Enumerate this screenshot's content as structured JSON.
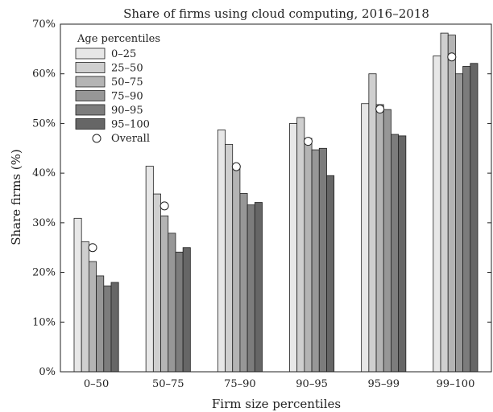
{
  "colors": {
    "age_0_25": "#e7e7e7",
    "age_25_50": "#cfcfcf",
    "age_50_75": "#b4b4b4",
    "age_75_90": "#979797",
    "age_90_95": "#7c7c7c",
    "age_95_100": "#666666",
    "overall_marker": "#ffffff",
    "axis": "#222222"
  },
  "chart_data": {
    "type": "bar",
    "title": "Share of firms using cloud computing, 2016–2018",
    "xlabel": "Firm size percentiles",
    "ylabel": "Share firms (%)",
    "ylim": [
      0,
      70
    ],
    "yticks": [
      0,
      10,
      20,
      30,
      40,
      50,
      60,
      70
    ],
    "ytick_labels": [
      "0%",
      "10%",
      "20%",
      "30%",
      "40%",
      "50%",
      "60%",
      "70%"
    ],
    "categories": [
      "0–50",
      "50–75",
      "75–90",
      "90–95",
      "95–99",
      "99–100"
    ],
    "legend_title": "Age percentiles",
    "legend_position": "top-left",
    "grid": false,
    "series": [
      {
        "name": "0–25",
        "color_key": "age_0_25",
        "values": [
          30.9,
          41.4,
          48.7,
          50.0,
          54.0,
          63.6
        ]
      },
      {
        "name": "25–50",
        "color_key": "age_25_50",
        "values": [
          26.2,
          35.8,
          45.8,
          51.2,
          60.0,
          68.2
        ]
      },
      {
        "name": "50–75",
        "color_key": "age_50_75",
        "values": [
          22.2,
          31.4,
          41.2,
          47.0,
          53.8,
          67.8
        ]
      },
      {
        "name": "75–90",
        "color_key": "age_75_90",
        "values": [
          19.3,
          27.9,
          35.9,
          44.7,
          52.8,
          60.0
        ]
      },
      {
        "name": "90–95",
        "color_key": "age_90_95",
        "values": [
          17.3,
          24.1,
          33.6,
          45.0,
          47.8,
          61.5
        ]
      },
      {
        "name": "95–100",
        "color_key": "age_95_100",
        "values": [
          18.0,
          25.0,
          34.1,
          39.5,
          47.5,
          62.1
        ]
      }
    ],
    "overall": {
      "name": "Overall",
      "values": [
        25.0,
        33.4,
        41.3,
        46.4,
        52.9,
        63.4
      ]
    }
  }
}
